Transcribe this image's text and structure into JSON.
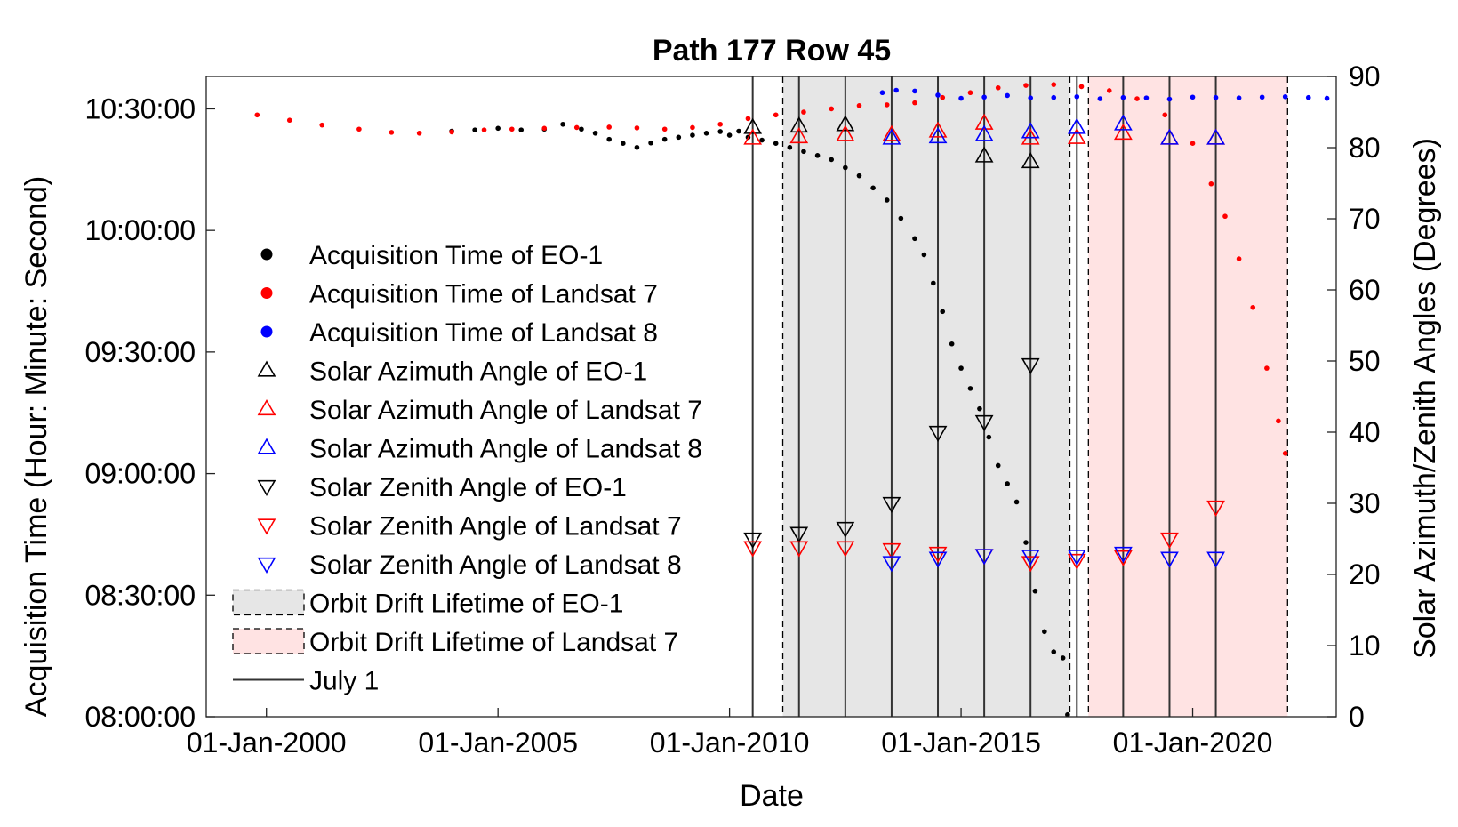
{
  "chart_data": {
    "type": "scatter",
    "title": "Path 177 Row 45",
    "xlabel": "Date",
    "ylabel_left": "Acquisition Time (Hour: Minute: Second)",
    "ylabel_right": "Solar Azimuth/Zenith Angles (Degrees)",
    "x_ticks": [
      {
        "value": 2000,
        "label": "01-Jan-2000"
      },
      {
        "value": 2005,
        "label": "01-Jan-2005"
      },
      {
        "value": 2010,
        "label": "01-Jan-2010"
      },
      {
        "value": 2015,
        "label": "01-Jan-2015"
      },
      {
        "value": 2020,
        "label": "01-Jan-2020"
      }
    ],
    "xlim": [
      1998.7,
      2023.1
    ],
    "ylim_left_minutes": [
      480,
      638
    ],
    "y_ticks_left": [
      {
        "value": 480,
        "label": "08:00:00"
      },
      {
        "value": 510,
        "label": "08:30:00"
      },
      {
        "value": 540,
        "label": "09:00:00"
      },
      {
        "value": 570,
        "label": "09:30:00"
      },
      {
        "value": 600,
        "label": "10:00:00"
      },
      {
        "value": 630,
        "label": "10:30:00"
      }
    ],
    "ylim_right": [
      0,
      90
    ],
    "y_ticks_right": [
      0,
      10,
      20,
      30,
      40,
      50,
      60,
      70,
      80,
      90
    ],
    "shaded_regions": [
      {
        "name": "Orbit Drift Lifetime of EO-1",
        "x0": 2011.15,
        "x1": 2017.35,
        "color": "#e6e6e6"
      },
      {
        "name": "Orbit Drift Lifetime of Landsat 7",
        "x0": 2017.75,
        "x1": 2022.05,
        "color": "#ffe3e3"
      }
    ],
    "july1_lines": [
      2010.5,
      2011.5,
      2012.5,
      2013.5,
      2014.5,
      2015.5,
      2016.5,
      2017.5,
      2018.5,
      2019.5,
      2020.5
    ],
    "series": [
      {
        "name": "Acquisition Time of EO-1",
        "marker": "dot",
        "color": "#000000",
        "points": [
          [
            2004.0,
            624.5
          ],
          [
            2004.5,
            624.8
          ],
          [
            2005.0,
            625.2
          ],
          [
            2005.5,
            624.8
          ],
          [
            2006.0,
            625.0
          ],
          [
            2006.4,
            626.2
          ],
          [
            2006.8,
            625.0
          ],
          [
            2007.1,
            624.0
          ],
          [
            2007.4,
            622.5
          ],
          [
            2007.7,
            621.5
          ],
          [
            2008.0,
            620.5
          ],
          [
            2008.3,
            621.6
          ],
          [
            2008.6,
            622.5
          ],
          [
            2008.9,
            623.0
          ],
          [
            2009.2,
            623.5
          ],
          [
            2009.5,
            624.0
          ],
          [
            2009.8,
            624.4
          ],
          [
            2010.0,
            623.5
          ],
          [
            2010.2,
            624.5
          ],
          [
            2010.4,
            623.0
          ],
          [
            2010.7,
            622.3
          ],
          [
            2011.0,
            621.5
          ],
          [
            2011.3,
            620.5
          ],
          [
            2011.6,
            619.5
          ],
          [
            2011.9,
            618.5
          ],
          [
            2012.2,
            617.5
          ],
          [
            2012.5,
            615.5
          ],
          [
            2012.8,
            613.5
          ],
          [
            2013.1,
            610.5
          ],
          [
            2013.4,
            607.5
          ],
          [
            2013.7,
            603.0
          ],
          [
            2014.0,
            598.0
          ],
          [
            2014.2,
            594.0
          ],
          [
            2014.4,
            587.0
          ],
          [
            2014.6,
            580.0
          ],
          [
            2014.8,
            572.0
          ],
          [
            2015.0,
            566.0
          ],
          [
            2015.2,
            561.0
          ],
          [
            2015.4,
            556.0
          ],
          [
            2015.6,
            549.0
          ],
          [
            2015.8,
            542.0
          ],
          [
            2016.0,
            537.5
          ],
          [
            2016.2,
            533.0
          ],
          [
            2016.4,
            523.0
          ],
          [
            2016.6,
            511.0
          ],
          [
            2016.8,
            501.0
          ],
          [
            2017.0,
            496.0
          ],
          [
            2017.2,
            494.5
          ],
          [
            2017.3,
            480.5
          ]
        ]
      },
      {
        "name": "Acquisition Time of Landsat 7",
        "marker": "dot",
        "color": "#ff0000",
        "points": [
          [
            1999.8,
            628.5
          ],
          [
            2000.5,
            627.2
          ],
          [
            2001.2,
            626.0
          ],
          [
            2002.0,
            625.0
          ],
          [
            2002.7,
            624.2
          ],
          [
            2003.3,
            624.0
          ],
          [
            2004.0,
            624.3
          ],
          [
            2004.7,
            624.8
          ],
          [
            2005.3,
            625.0
          ],
          [
            2006.0,
            625.2
          ],
          [
            2006.7,
            625.4
          ],
          [
            2007.4,
            625.5
          ],
          [
            2008.0,
            625.3
          ],
          [
            2008.6,
            625.0
          ],
          [
            2009.2,
            625.4
          ],
          [
            2009.8,
            626.2
          ],
          [
            2010.4,
            627.6
          ],
          [
            2011.0,
            628.5
          ],
          [
            2011.6,
            629.2
          ],
          [
            2012.2,
            630.0
          ],
          [
            2012.8,
            630.8
          ],
          [
            2013.4,
            631.0
          ],
          [
            2014.0,
            631.5
          ],
          [
            2014.6,
            632.8
          ],
          [
            2015.2,
            634.0
          ],
          [
            2015.8,
            635.2
          ],
          [
            2016.4,
            635.8
          ],
          [
            2017.0,
            636.0
          ],
          [
            2017.6,
            635.5
          ],
          [
            2018.2,
            634.5
          ],
          [
            2018.8,
            632.5
          ],
          [
            2019.4,
            628.5
          ],
          [
            2020.0,
            621.5
          ],
          [
            2020.4,
            611.5
          ],
          [
            2020.7,
            603.5
          ],
          [
            2021.0,
            593.0
          ],
          [
            2021.3,
            581.0
          ],
          [
            2021.6,
            566.0
          ],
          [
            2021.85,
            553.0
          ],
          [
            2022.0,
            545.0
          ]
        ]
      },
      {
        "name": "Acquisition Time of Landsat 8",
        "marker": "dot",
        "color": "#0000ff",
        "points": [
          [
            2013.3,
            634.0
          ],
          [
            2013.6,
            634.6
          ],
          [
            2014.0,
            634.4
          ],
          [
            2014.5,
            633.4
          ],
          [
            2015.0,
            632.6
          ],
          [
            2015.5,
            632.9
          ],
          [
            2016.0,
            633.3
          ],
          [
            2016.5,
            632.7
          ],
          [
            2017.0,
            632.8
          ],
          [
            2017.5,
            633.0
          ],
          [
            2018.0,
            632.5
          ],
          [
            2018.5,
            632.8
          ],
          [
            2019.0,
            632.7
          ],
          [
            2019.5,
            632.4
          ],
          [
            2020.0,
            632.9
          ],
          [
            2020.5,
            632.8
          ],
          [
            2021.0,
            632.7
          ],
          [
            2021.5,
            632.9
          ],
          [
            2022.0,
            633.0
          ],
          [
            2022.5,
            632.8
          ],
          [
            2022.9,
            632.6
          ]
        ]
      },
      {
        "name": "Solar Azimuth Angle of EO-1",
        "marker": "triangle-up",
        "color": "#000000",
        "points": [
          [
            2010.5,
            82.8
          ],
          [
            2011.5,
            83.0
          ],
          [
            2012.5,
            83.2
          ],
          [
            2015.5,
            78.8
          ],
          [
            2016.5,
            78.0
          ]
        ]
      },
      {
        "name": "Solar Azimuth Angle of Landsat 7",
        "marker": "triangle-up",
        "color": "#ff0000",
        "points": [
          [
            2010.5,
            81.3
          ],
          [
            2011.5,
            81.5
          ],
          [
            2012.5,
            81.8
          ],
          [
            2013.5,
            81.8
          ],
          [
            2014.5,
            82.3
          ],
          [
            2015.5,
            83.4
          ],
          [
            2016.5,
            81.3
          ],
          [
            2017.5,
            81.4
          ],
          [
            2018.5,
            82.0
          ],
          [
            2019.5,
            81.3
          ],
          [
            2020.5,
            81.3
          ]
        ]
      },
      {
        "name": "Solar Azimuth Angle of Landsat 8",
        "marker": "triangle-up",
        "color": "#0000ff",
        "points": [
          [
            2013.5,
            81.3
          ],
          [
            2014.5,
            81.5
          ],
          [
            2015.5,
            81.8
          ],
          [
            2016.5,
            82.2
          ],
          [
            2017.5,
            82.8
          ],
          [
            2018.5,
            83.3
          ],
          [
            2019.5,
            81.3
          ],
          [
            2020.5,
            81.3
          ]
        ]
      },
      {
        "name": "Solar Zenith Angle of EO-1",
        "marker": "triangle-down",
        "color": "#000000",
        "points": [
          [
            2010.5,
            25.0
          ],
          [
            2011.5,
            25.8
          ],
          [
            2012.5,
            26.5
          ],
          [
            2013.5,
            30.0
          ],
          [
            2014.5,
            40.0
          ],
          [
            2015.5,
            41.5
          ],
          [
            2016.5,
            49.5
          ]
        ]
      },
      {
        "name": "Solar Zenith Angle of Landsat 7",
        "marker": "triangle-down",
        "color": "#ff0000",
        "points": [
          [
            2010.5,
            23.8
          ],
          [
            2011.5,
            23.8
          ],
          [
            2012.5,
            23.8
          ],
          [
            2013.5,
            23.5
          ],
          [
            2014.5,
            23.0
          ],
          [
            2015.5,
            22.7
          ],
          [
            2016.5,
            21.7
          ],
          [
            2017.5,
            22.0
          ],
          [
            2018.5,
            22.5
          ],
          [
            2019.5,
            25.0
          ],
          [
            2020.5,
            29.5
          ]
        ]
      },
      {
        "name": "Solar Zenith Angle of Landsat 8",
        "marker": "triangle-down",
        "color": "#0000ff",
        "points": [
          [
            2013.5,
            21.7
          ],
          [
            2014.5,
            22.3
          ],
          [
            2015.5,
            22.7
          ],
          [
            2016.5,
            22.6
          ],
          [
            2017.5,
            22.6
          ],
          [
            2018.5,
            23.0
          ],
          [
            2019.5,
            22.3
          ],
          [
            2020.5,
            22.3
          ]
        ]
      }
    ],
    "legend": {
      "placement": "inside-left",
      "items": [
        {
          "label": "Acquisition Time of EO-1",
          "symbol": "dot",
          "color": "#000000"
        },
        {
          "label": "Acquisition Time of Landsat 7",
          "symbol": "dot",
          "color": "#ff0000"
        },
        {
          "label": "Acquisition Time of Landsat 8",
          "symbol": "dot",
          "color": "#0000ff"
        },
        {
          "label": "Solar Azimuth Angle of EO-1",
          "symbol": "triangle-up",
          "color": "#000000"
        },
        {
          "label": "Solar Azimuth Angle of Landsat 7",
          "symbol": "triangle-up",
          "color": "#ff0000"
        },
        {
          "label": "Solar Azimuth Angle of Landsat 8",
          "symbol": "triangle-up",
          "color": "#0000ff"
        },
        {
          "label": "Solar Zenith Angle of EO-1",
          "symbol": "triangle-down",
          "color": "#000000"
        },
        {
          "label": "Solar Zenith Angle of Landsat 7",
          "symbol": "triangle-down",
          "color": "#ff0000"
        },
        {
          "label": "Solar Zenith Angle of Landsat 8",
          "symbol": "triangle-down",
          "color": "#0000ff"
        },
        {
          "label": "Orbit Drift Lifetime of EO-1",
          "symbol": "patch",
          "color": "#e6e6e6"
        },
        {
          "label": "Orbit Drift Lifetime of Landsat 7",
          "symbol": "patch",
          "color": "#ffe3e3"
        },
        {
          "label": "July 1",
          "symbol": "line",
          "color": "#333333"
        }
      ]
    }
  }
}
